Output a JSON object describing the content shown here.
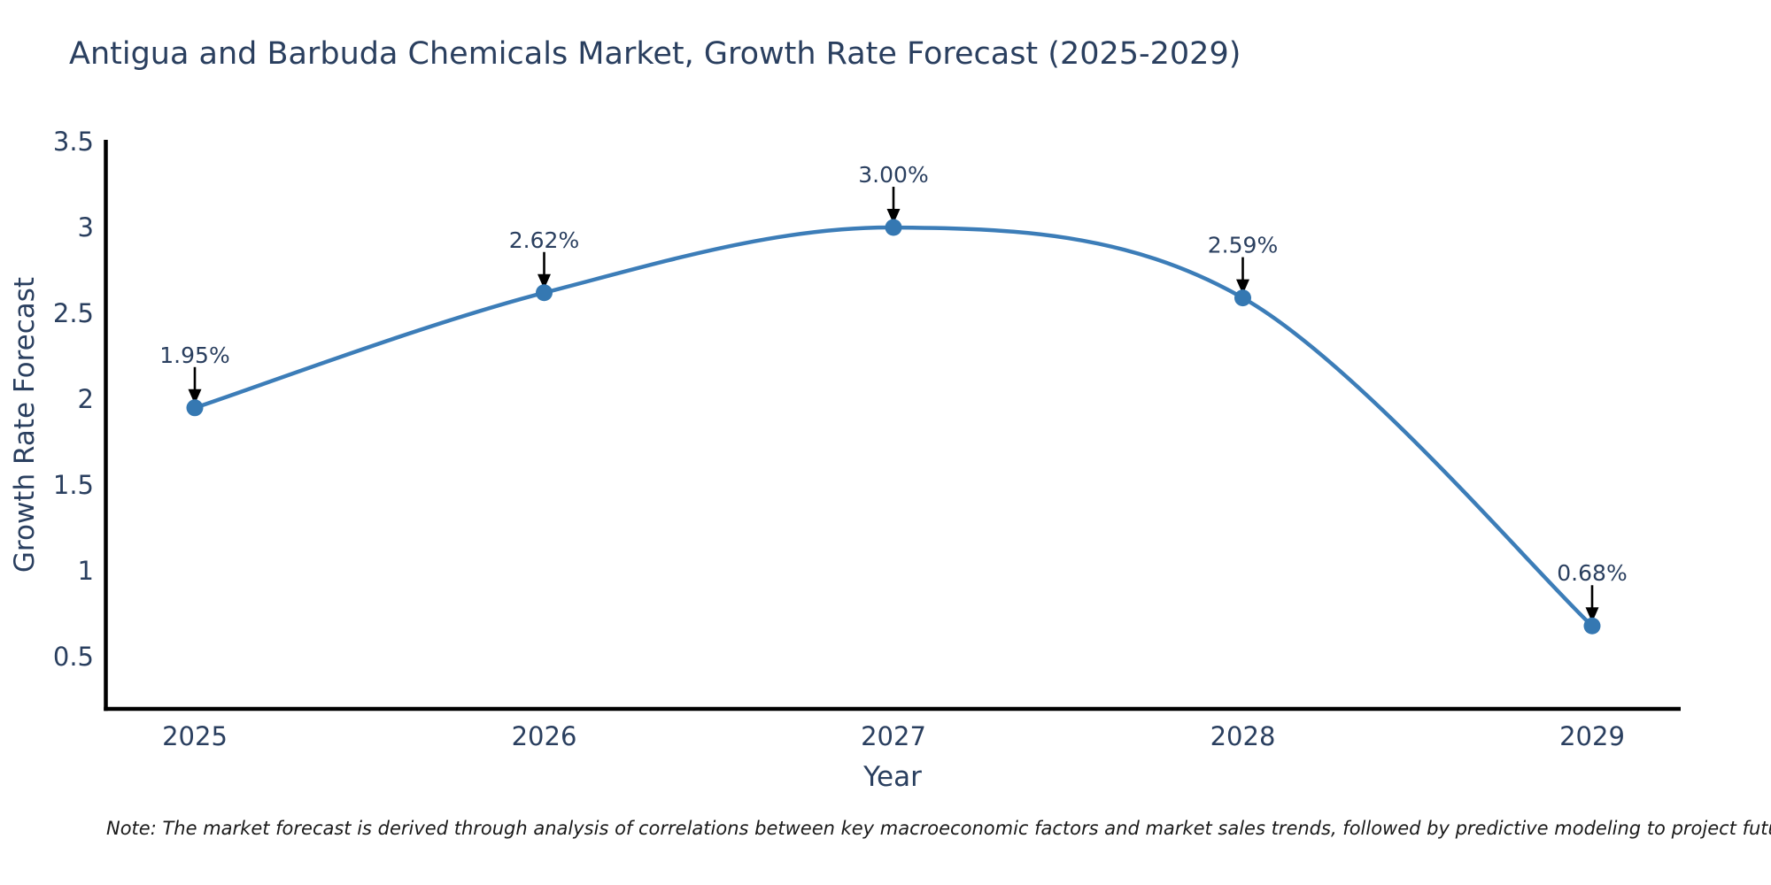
{
  "title": "Antigua and Barbuda Chemicals Market, Growth Rate Forecast (2025-2029)",
  "note": "Note: The market forecast is derived through analysis of correlations between key macroeconomic factors and market sales trends, followed by predictive modeling to project future sales",
  "chart_data": {
    "type": "line",
    "line_shape": "spline",
    "title": "Antigua and Barbuda Chemicals Market, Growth Rate Forecast (2025-2029)",
    "xlabel": "Year",
    "ylabel": "Growth Rate Forecast",
    "x": [
      2025,
      2026,
      2027,
      2028,
      2029
    ],
    "values": [
      1.95,
      2.62,
      3.0,
      2.59,
      0.68
    ],
    "point_labels": [
      "1.95%",
      "2.62%",
      "3.00%",
      "2.59%",
      "0.68%"
    ],
    "xtick_labels": [
      "2025",
      "2026",
      "2027",
      "2028",
      "2029"
    ],
    "yticks": [
      3.5,
      3,
      2.5,
      2,
      1.5,
      1,
      0.5
    ],
    "ytick_labels": [
      "3.5",
      "3",
      "2.5",
      "2",
      "1.5",
      "1",
      "0.5"
    ],
    "ylim": [
      0.2,
      3.5
    ],
    "grid": false,
    "legend": "none",
    "annotations_have_arrows": true,
    "colors": {
      "line": "#3c7db8",
      "marker": "#3578b2",
      "axis": "#000000",
      "text": "#2a3f5f",
      "arrow": "#000000",
      "note_text": "#1a1a1a",
      "background": "#ffffff"
    }
  }
}
